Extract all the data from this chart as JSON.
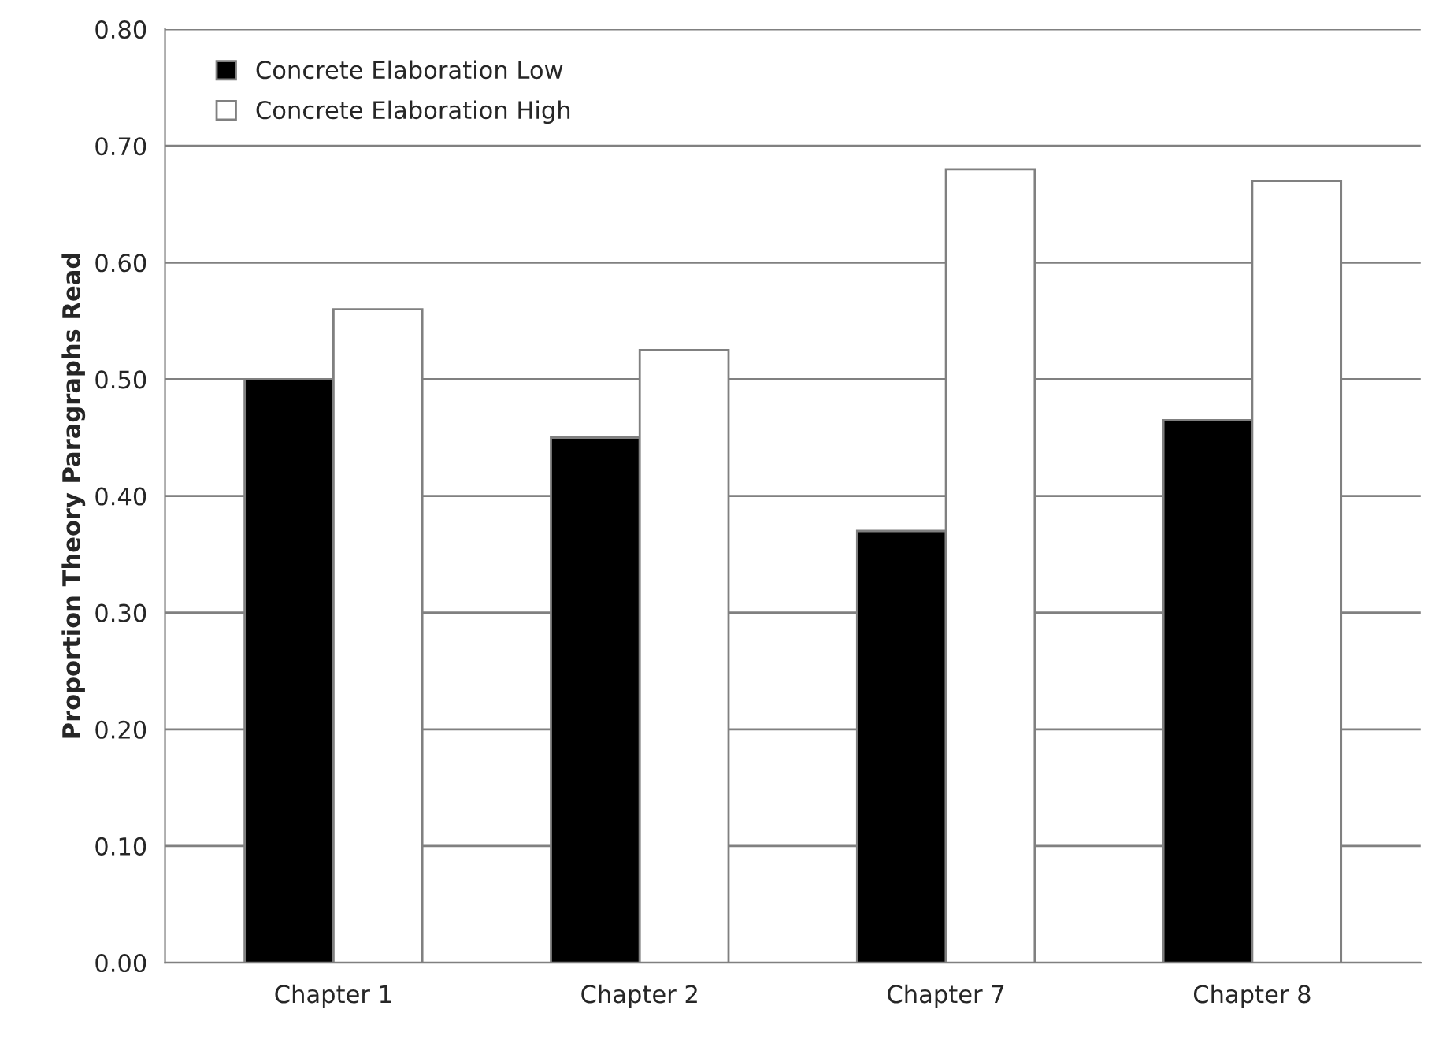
{
  "chart_data": {
    "type": "bar",
    "ylabel": "Proportion Theory Paragraphs Read",
    "categories": [
      "Chapter 1",
      "Chapter 2",
      "Chapter 7",
      "Chapter 8"
    ],
    "series": [
      {
        "name": "Concrete Elaboration Low",
        "color": "#000000",
        "values": [
          0.5,
          0.45,
          0.37,
          0.465
        ]
      },
      {
        "name": "Concrete Elaboration High",
        "color": "#ffffff",
        "values": [
          0.56,
          0.525,
          0.68,
          0.67
        ]
      }
    ],
    "ylim": [
      0,
      0.8
    ],
    "yticks": [
      {
        "value": 0,
        "label": "0.00"
      },
      {
        "value": 0.1,
        "label": "0.10"
      },
      {
        "value": 0.2,
        "label": "0.20"
      },
      {
        "value": 0.3,
        "label": "0.30"
      },
      {
        "value": 0.4,
        "label": "0.40"
      },
      {
        "value": 0.5,
        "label": "0.50"
      },
      {
        "value": 0.6,
        "label": "0.60"
      },
      {
        "value": 0.7,
        "label": "0.70"
      },
      {
        "value": 0.8,
        "label": "0.80"
      }
    ],
    "grid": "y",
    "legend": "top left"
  }
}
